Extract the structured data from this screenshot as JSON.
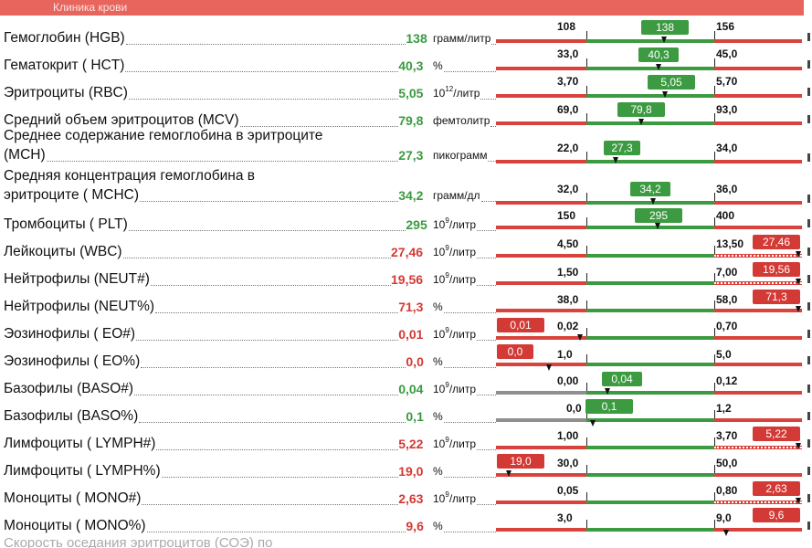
{
  "section": {
    "title": "Клиника крови"
  },
  "rows": [
    {
      "name": "Гемоглобин (HGB)",
      "value": "138",
      "status": "ok",
      "unit": "грамм/литр",
      "low": "108",
      "high": "156",
      "badge": "138"
    },
    {
      "name": "Гематокрит ( HCT)",
      "value": "40,3",
      "status": "ok",
      "unit": "%",
      "low": "33,0",
      "high": "45,0",
      "badge": "40,3"
    },
    {
      "name": "Эритроциты (RBC)",
      "value": "5,05",
      "status": "ok",
      "unit_base": "10",
      "unit_exp": "12",
      "unit_tail": "/литр",
      "low": "3,70",
      "high": "5,70",
      "badge": "5,05"
    },
    {
      "name": "Средний объем эритроцитов (MCV)",
      "value": "79,8",
      "status": "ok",
      "unit": "фемтолитр",
      "low": "69,0",
      "high": "93,0",
      "badge": "79,8"
    },
    {
      "name": "Среднее содержание гемоглобина в эритроците",
      "name2": "(MCH)",
      "value": "27,3",
      "status": "ok",
      "unit": "пикограмм",
      "low": "22,0",
      "high": "34,0",
      "badge": "27,3"
    },
    {
      "name": "Средняя концентрация гемоглобина в",
      "name2": "эритроците ( MCHC)",
      "value": "34,2",
      "status": "ok",
      "unit": "грамм/дл",
      "low": "32,0",
      "high": "36,0",
      "badge": "34,2"
    },
    {
      "name": "Тромбоциты ( PLT)",
      "value": "295",
      "status": "ok",
      "unit_base": "10",
      "unit_exp": "9",
      "unit_tail": "/литр",
      "low": "150",
      "high": "400",
      "badge": "295"
    },
    {
      "name": "Лейкоциты (WBC)",
      "value": "27,46",
      "status": "bad",
      "unit_base": "10",
      "unit_exp": "9",
      "unit_tail": "/литр",
      "low": "4,50",
      "high": "13,50",
      "badge": "27,46"
    },
    {
      "name": "Нейтрофилы (NEUT#)",
      "value": "19,56",
      "status": "bad",
      "unit_base": "10",
      "unit_exp": "9",
      "unit_tail": "/литр",
      "low": "1,50",
      "high": "7,00",
      "badge": "19,56"
    },
    {
      "name": "Нейтрофилы (NEUT%)",
      "value": "71,3",
      "status": "bad",
      "unit": "%",
      "low": "38,0",
      "high": "58,0",
      "badge": "71,3"
    },
    {
      "name": "Эозинофилы ( EO#)",
      "value": "0,01",
      "status": "bad",
      "unit_base": "10",
      "unit_exp": "9",
      "unit_tail": "/литр",
      "low": "0,02",
      "high": "0,70",
      "badge": "0,01"
    },
    {
      "name": "Эозинофилы ( EO%)",
      "value": "0,0",
      "status": "bad",
      "unit": "%",
      "low": "1,0",
      "high": "5,0",
      "badge": "0,0"
    },
    {
      "name": "Базофилы (BASO#)",
      "value": "0,04",
      "status": "ok",
      "unit_base": "10",
      "unit_exp": "9",
      "unit_tail": "/литр",
      "low": "0,00",
      "high": "0,12",
      "badge": "0,04"
    },
    {
      "name": "Базофилы (BASO%)",
      "value": "0,1",
      "status": "ok",
      "unit": "%",
      "low": "0,0",
      "high": "1,2",
      "badge": "0,1"
    },
    {
      "name": "Лимфоциты ( LYMPH#)",
      "value": "5,22",
      "status": "bad",
      "unit_base": "10",
      "unit_exp": "9",
      "unit_tail": "/литр",
      "low": "1,00",
      "high": "3,70",
      "badge": "5,22"
    },
    {
      "name": "Лимфоциты ( LYMPH%)",
      "value": "19,0",
      "status": "bad",
      "unit": "%",
      "low": "30,0",
      "high": "50,0",
      "badge": "19,0"
    },
    {
      "name": "Моноциты ( MONO#)",
      "value": "2,63",
      "status": "bad",
      "unit_base": "10",
      "unit_exp": "9",
      "unit_tail": "/литр",
      "low": "0,05",
      "high": "0,80",
      "badge": "2,63"
    },
    {
      "name": "Моноциты ( MONO%)",
      "value": "9,6",
      "status": "bad",
      "unit": "%",
      "low": "3,0",
      "high": "9,0",
      "badge": "9,6"
    }
  ],
  "footer": {
    "partial_text": "Скорость оседания эритроцитов (СОЭ) по"
  }
}
